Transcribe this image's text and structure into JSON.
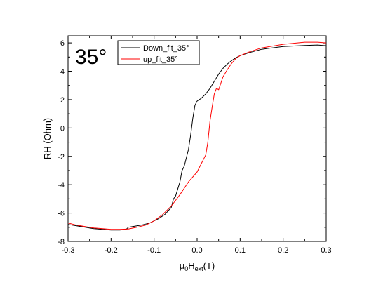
{
  "chart_data": {
    "type": "line",
    "annotation": "35°",
    "ylabel": "RH (Ohm)",
    "xlabel": {
      "main": "μ",
      "sub1": "0",
      "mid": "H",
      "sub2": "ext",
      "end": "(T)"
    },
    "xlim": [
      -0.3,
      0.3
    ],
    "ylim": [
      -8,
      6.5
    ],
    "xticks": [
      -0.3,
      -0.2,
      -0.1,
      0.0,
      0.1,
      0.2,
      0.3
    ],
    "xtick_labels": [
      "-0.3",
      "-0.2",
      "-0.1",
      "0.0",
      "0.1",
      "0.2",
      "0.3"
    ],
    "yticks": [
      -8,
      -6,
      -4,
      -2,
      0,
      2,
      4,
      6
    ],
    "ytick_labels": [
      "-8",
      "-6",
      "-4",
      "-2",
      "0",
      "2",
      "4",
      "6"
    ],
    "grid": false,
    "legend": "top-left",
    "series": [
      {
        "name": "Down_fit_35°",
        "color": "#000000",
        "x": [
          -0.3,
          -0.28,
          -0.26,
          -0.24,
          -0.22,
          -0.2,
          -0.18,
          -0.165,
          -0.16,
          -0.15,
          -0.13,
          -0.11,
          -0.09,
          -0.075,
          -0.06,
          -0.055,
          -0.05,
          -0.04,
          -0.035,
          -0.03,
          -0.02,
          -0.015,
          -0.01,
          -0.005,
          0.0,
          0.01,
          0.02,
          0.03,
          0.04,
          0.05,
          0.06,
          0.07,
          0.08,
          0.09,
          0.1,
          0.12,
          0.15,
          0.2,
          0.25,
          0.28,
          0.3
        ],
        "y": [
          -6.8,
          -6.9,
          -7.0,
          -7.1,
          -7.15,
          -7.2,
          -7.2,
          -7.15,
          -7.0,
          -6.95,
          -6.85,
          -6.7,
          -6.4,
          -6.1,
          -5.6,
          -5.0,
          -4.8,
          -3.8,
          -3.0,
          -2.7,
          -1.5,
          -0.5,
          0.7,
          1.6,
          1.9,
          2.1,
          2.4,
          2.8,
          3.3,
          3.8,
          4.2,
          4.5,
          4.75,
          4.95,
          5.1,
          5.3,
          5.55,
          5.75,
          5.82,
          5.85,
          5.8
        ]
      },
      {
        "name": "up_fit_35°",
        "color": "#ff0000",
        "x": [
          -0.3,
          -0.28,
          -0.26,
          -0.24,
          -0.22,
          -0.2,
          -0.18,
          -0.16,
          -0.14,
          -0.12,
          -0.1,
          -0.08,
          -0.06,
          -0.04,
          -0.02,
          0.0,
          0.01,
          0.02,
          0.025,
          0.03,
          0.035,
          0.04,
          0.045,
          0.05,
          0.06,
          0.07,
          0.08,
          0.09,
          0.1,
          0.12,
          0.15,
          0.2,
          0.25,
          0.28,
          0.3
        ],
        "y": [
          -6.7,
          -6.85,
          -6.95,
          -7.05,
          -7.1,
          -7.15,
          -7.15,
          -7.12,
          -7.0,
          -6.85,
          -6.55,
          -6.1,
          -5.5,
          -4.7,
          -3.8,
          -3.1,
          -2.5,
          -1.9,
          -1.0,
          0.5,
          1.5,
          2.4,
          2.8,
          2.7,
          3.6,
          4.1,
          4.55,
          4.9,
          5.1,
          5.35,
          5.65,
          5.9,
          6.05,
          6.05,
          6.0
        ]
      }
    ]
  }
}
